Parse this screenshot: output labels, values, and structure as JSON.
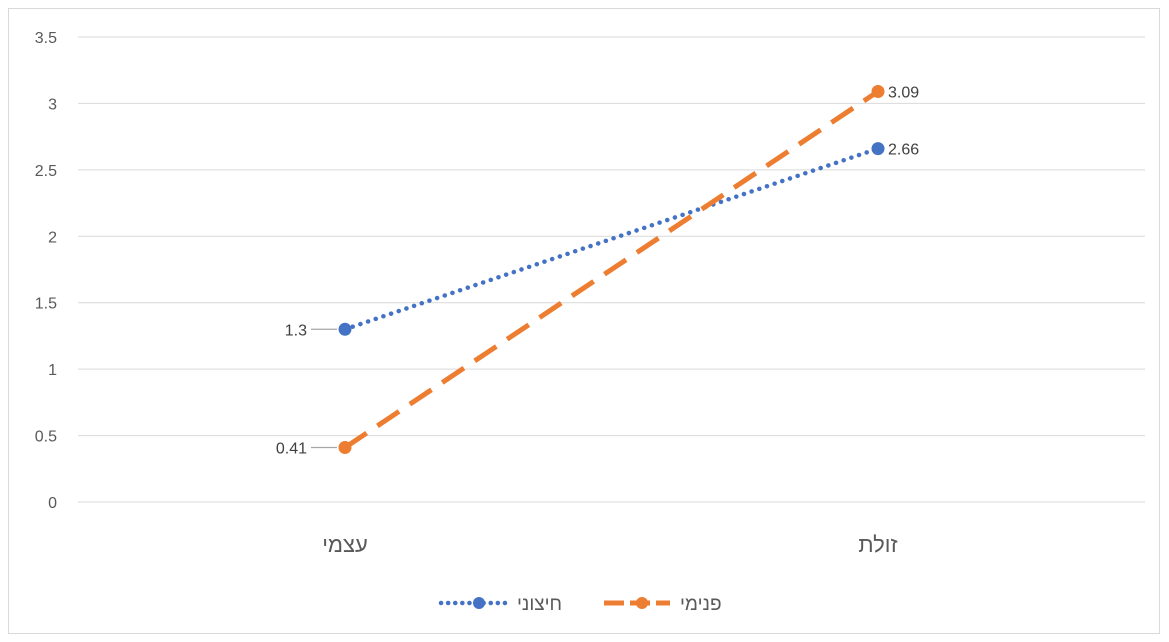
{
  "chart_data": {
    "type": "line",
    "categories": [
      "עצמי",
      "זולת"
    ],
    "series": [
      {
        "name": "חיצוני",
        "values": [
          1.3,
          2.66
        ],
        "color": "#4472C4",
        "line_style": "dotted",
        "marker": "circle"
      },
      {
        "name": "פנימי",
        "values": [
          0.41,
          3.09
        ],
        "color": "#ED7D31",
        "line_style": "dashed",
        "marker": "circle"
      }
    ],
    "data_labels": [
      [
        "1.3",
        "2.66"
      ],
      [
        "0.41",
        "3.09"
      ]
    ],
    "y_ticks": [
      "0",
      "0.5",
      "1",
      "1.5",
      "2",
      "2.5",
      "3",
      "3.5"
    ],
    "ylim": [
      0,
      3.5
    ],
    "title": "",
    "xlabel": "",
    "ylabel": "",
    "grid": true,
    "legend_position": "bottom",
    "gridline_color": "#d9d9d9",
    "text_color": "#595959"
  }
}
